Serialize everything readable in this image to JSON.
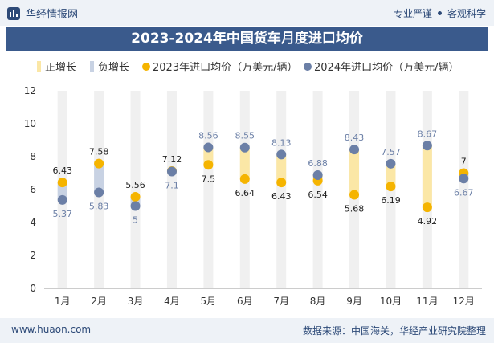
{
  "header": {
    "brand": "华经情报网",
    "tag1": "专业严谨",
    "tag2": "客观科学"
  },
  "footer": {
    "website": "www.huaon.com",
    "source": "数据来源：中国海关，华经产业研究院整理"
  },
  "colors": {
    "up_bar": "#fbe7a6",
    "down_bar": "#c8d2e3",
    "series2023": "#f5b400",
    "series2024": "#6b7fa6",
    "title_bg": "#3a5a8c"
  },
  "chart_data": {
    "type": "dumbbell",
    "title": "2023-2024年中国货车月度进口均价",
    "categories": [
      "1月",
      "2月",
      "3月",
      "4月",
      "5月",
      "6月",
      "7月",
      "8月",
      "9月",
      "10月",
      "11月",
      "12月"
    ],
    "series": [
      {
        "name": "2023年进口均价（万美元/辆）",
        "values": [
          6.43,
          7.58,
          5.56,
          7.12,
          7.5,
          6.64,
          6.43,
          6.54,
          5.68,
          6.19,
          4.92,
          7
        ]
      },
      {
        "name": "2024年进口均价（万美元/辆）",
        "values": [
          5.37,
          5.83,
          5,
          7.1,
          8.56,
          8.55,
          8.13,
          6.88,
          8.43,
          7.57,
          8.67,
          6.67
        ]
      }
    ],
    "legend": [
      "正增长",
      "负增长",
      "2023年进口均价（万美元/辆）",
      "2024年进口均价（万美元/辆）"
    ],
    "ylim": [
      0,
      12
    ],
    "yticks": [
      0,
      2,
      4,
      6,
      8,
      10,
      12
    ]
  }
}
